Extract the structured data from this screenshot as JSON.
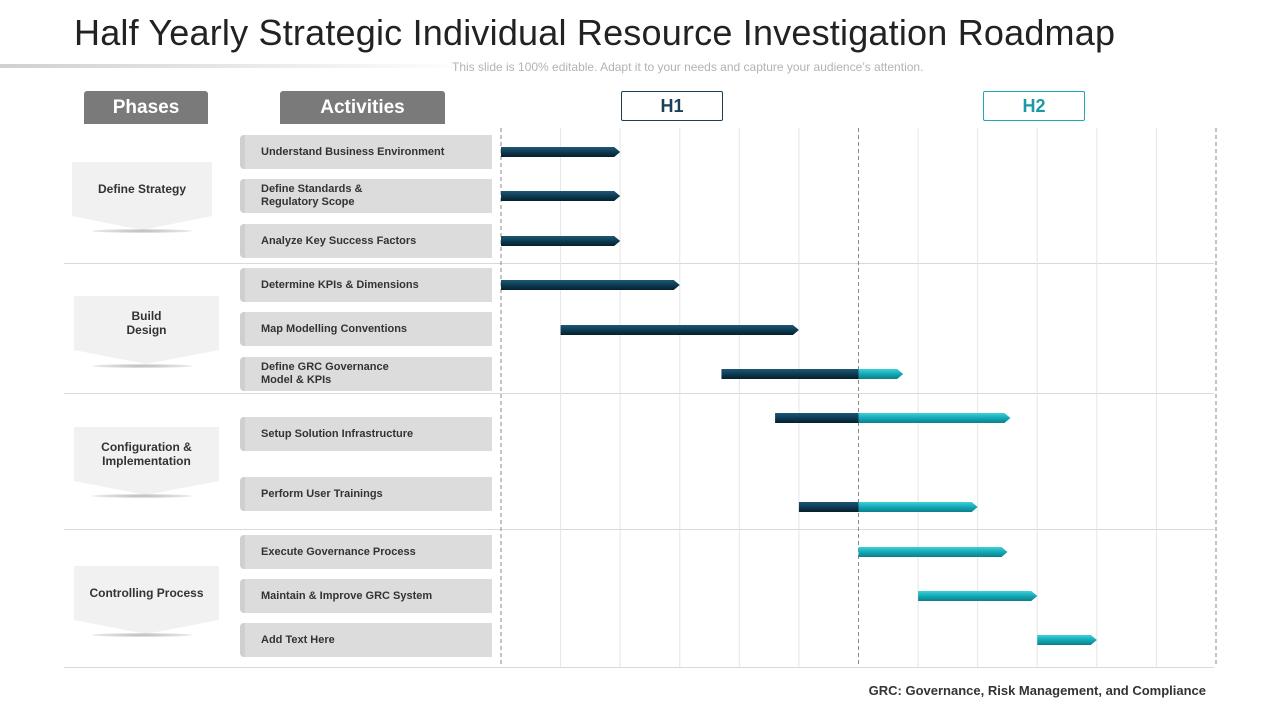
{
  "header": {
    "title": "Half Yearly Strategic Individual Resource Investigation Roadmap",
    "subtitle": "This slide is 100% editable. Adapt it to your needs and capture your audience’s attention."
  },
  "columns": {
    "phases_label": "Phases",
    "activities_label": "Activities",
    "h1_label": "H1",
    "h2_label": "H2"
  },
  "colors": {
    "h1_bar": "#0d3b53",
    "h2_bar": "#13a9b6",
    "header_tab": "#7a7a7a",
    "h1_tab_border": "#1a3f57",
    "h2_tab_border": "#22a8b4"
  },
  "phases": [
    {
      "label": "Define Strategy"
    },
    {
      "label": "Build\nDesign"
    },
    {
      "label": "Configuration  &\nImplementation"
    },
    {
      "label": "Controlling  Process"
    }
  ],
  "activities": [
    {
      "label": "Understand Business Environment"
    },
    {
      "label": "Define Standards &\nRegulatory Scope"
    },
    {
      "label": "Analyze Key Success Factors"
    },
    {
      "label": "Determine KPIs & Dimensions"
    },
    {
      "label": "Map Modelling Conventions"
    },
    {
      "label": "Define GRC Governance\nModel & KPIs"
    },
    {
      "label": "Setup Solution Infrastructure"
    },
    {
      "label": "Perform User Trainings"
    },
    {
      "label": "Execute Governance Process"
    },
    {
      "label": "Maintain & Improve GRC System"
    },
    {
      "label": "Add Text Here"
    }
  ],
  "chart_data": {
    "type": "gantt",
    "periods": 12,
    "divider_period": 6,
    "tasks": [
      {
        "activity": 0,
        "start": 0,
        "end": 2
      },
      {
        "activity": 1,
        "start": 0,
        "end": 2
      },
      {
        "activity": 2,
        "start": 0,
        "end": 2
      },
      {
        "activity": 3,
        "start": 0,
        "end": 3
      },
      {
        "activity": 4,
        "start": 1,
        "end": 5
      },
      {
        "activity": 5,
        "start": 3.7,
        "end": 6.75
      },
      {
        "activity": 6,
        "start": 4.6,
        "end": 8.55
      },
      {
        "activity": 7,
        "start": 5,
        "end": 8
      },
      {
        "activity": 8,
        "start": 6,
        "end": 8.5
      },
      {
        "activity": 9,
        "start": 7,
        "end": 9
      },
      {
        "activity": 10,
        "start": 9,
        "end": 10
      }
    ]
  },
  "footnote": "GRC: Governance, Risk Management, and Compliance"
}
